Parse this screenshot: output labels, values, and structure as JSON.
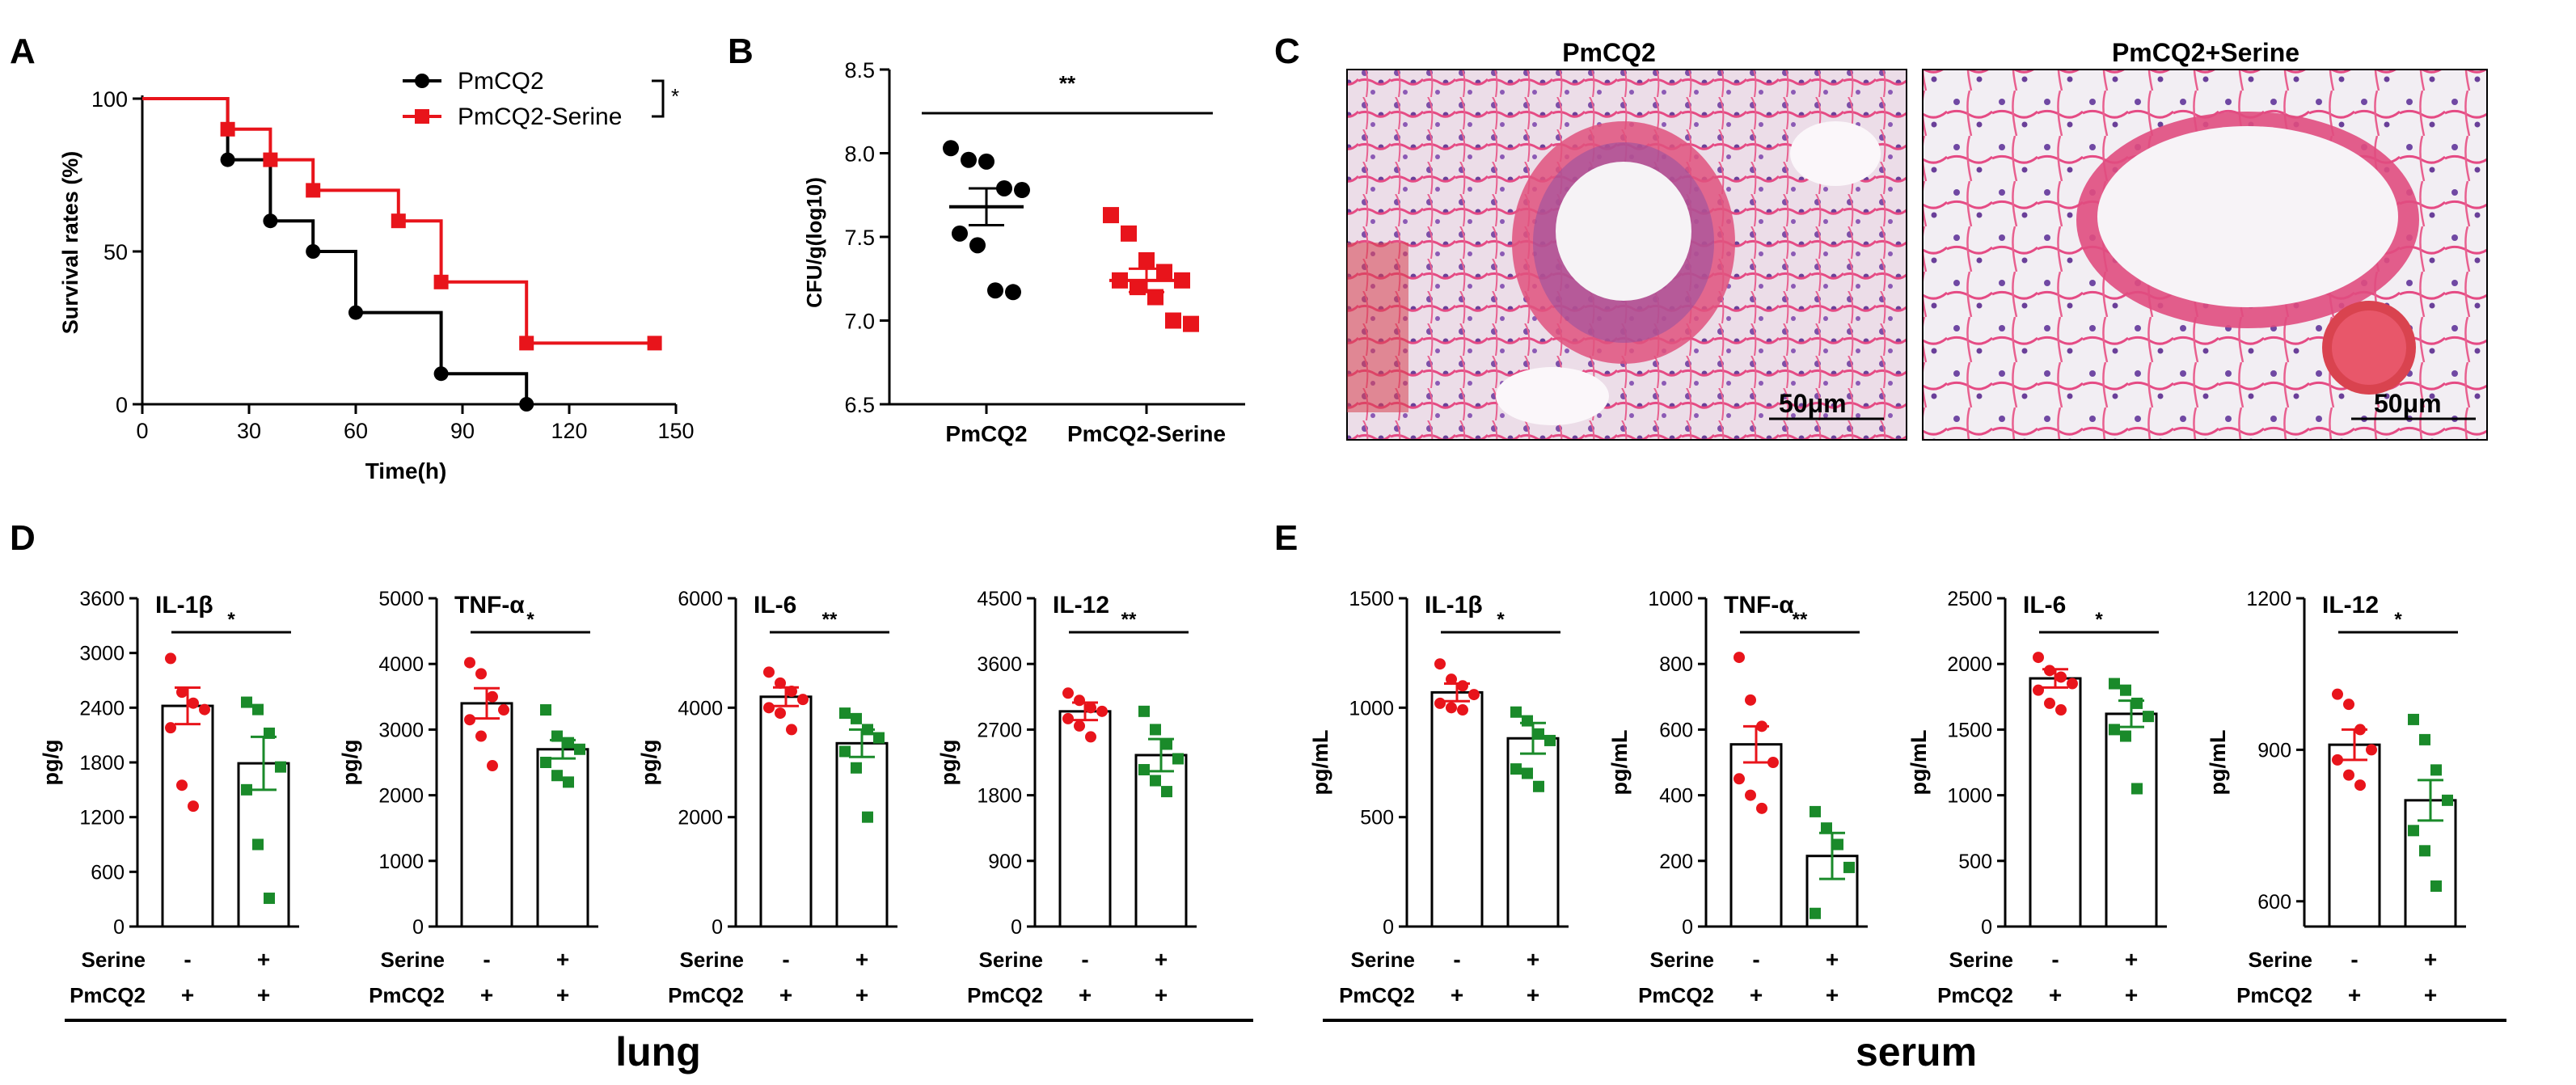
{
  "panel_labels": [
    "A",
    "B",
    "C",
    "D",
    "E"
  ],
  "colors": {
    "control": "#000000",
    "serine_red": "#e8141b",
    "serine_green": "#1a8a2a",
    "axis": "#000000"
  },
  "chart_data": [
    {
      "id": "A",
      "type": "line",
      "subtype": "kaplan-meier",
      "title": "",
      "xlabel": "Time(h)",
      "ylabel": "Survival rates (%)",
      "xlim": [
        0,
        150
      ],
      "ylim": [
        0,
        100
      ],
      "xticks": [
        0,
        30,
        60,
        90,
        120,
        150
      ],
      "yticks": [
        0,
        50,
        100
      ],
      "significance": "*",
      "series": [
        {
          "name": "PmCQ2",
          "color": "#000000",
          "points": [
            [
              0,
              100
            ],
            [
              24,
              100
            ],
            [
              24,
              80
            ],
            [
              36,
              80
            ],
            [
              36,
              60
            ],
            [
              48,
              60
            ],
            [
              48,
              50
            ],
            [
              60,
              50
            ],
            [
              60,
              30
            ],
            [
              84,
              30
            ],
            [
              84,
              10
            ],
            [
              108,
              10
            ],
            [
              108,
              0
            ]
          ],
          "markers": [
            [
              24,
              80
            ],
            [
              36,
              60
            ],
            [
              48,
              50
            ],
            [
              60,
              30
            ],
            [
              84,
              10
            ],
            [
              108,
              0
            ]
          ]
        },
        {
          "name": "PmCQ2-Serine",
          "color": "#e8141b",
          "points": [
            [
              0,
              100
            ],
            [
              24,
              100
            ],
            [
              24,
              90
            ],
            [
              36,
              90
            ],
            [
              36,
              80
            ],
            [
              48,
              80
            ],
            [
              48,
              70
            ],
            [
              72,
              70
            ],
            [
              72,
              60
            ],
            [
              84,
              60
            ],
            [
              84,
              40
            ],
            [
              108,
              40
            ],
            [
              108,
              20
            ],
            [
              144,
              20
            ]
          ],
          "markers": [
            [
              24,
              90
            ],
            [
              36,
              80
            ],
            [
              48,
              70
            ],
            [
              72,
              60
            ],
            [
              84,
              40
            ],
            [
              108,
              20
            ],
            [
              144,
              20
            ]
          ]
        }
      ]
    },
    {
      "id": "B",
      "type": "scatter",
      "subtype": "dot-plot",
      "ylabel": "CFU/g(log10)",
      "ylim": [
        6.5,
        8.5
      ],
      "yticks": [
        "6.5",
        "7.0",
        "7.5",
        "8.0",
        "8.5"
      ],
      "categories": [
        "PmCQ2",
        "PmCQ2-Serine"
      ],
      "significance": "**",
      "series": [
        {
          "name": "PmCQ2",
          "color": "#000000",
          "mean": 7.68,
          "sem": 0.11,
          "values": [
            8.03,
            7.96,
            7.95,
            7.79,
            7.78,
            7.52,
            7.45,
            7.18,
            7.17
          ]
        },
        {
          "name": "PmCQ2-Serine",
          "color": "#e8141b",
          "mean": 7.24,
          "sem": 0.07,
          "values": [
            7.63,
            7.52,
            7.36,
            7.29,
            7.24,
            7.24,
            7.2,
            7.14,
            7.0,
            6.98
          ]
        }
      ]
    },
    {
      "id": "C",
      "type": "image",
      "subtype": "histology",
      "panels": [
        {
          "title": "PmCQ2",
          "scale_bar": "50μm"
        },
        {
          "title": "PmCQ2+Serine",
          "scale_bar": "50μm"
        }
      ]
    },
    {
      "id": "D",
      "type": "bar",
      "group": "lung",
      "ylabel": "pg/g",
      "row_labels": [
        "Serine",
        "PmCQ2"
      ],
      "conditions": [
        [
          "-",
          "+"
        ],
        [
          "+",
          "+"
        ]
      ],
      "categories": [
        "-",
        "+"
      ],
      "plots": [
        {
          "title": "IL-1β",
          "ylim": [
            0,
            3600
          ],
          "yticks": [
            "0",
            "600",
            "1200",
            "1800",
            "2400",
            "3000",
            "3600"
          ],
          "significance": "*",
          "bars": [
            2420,
            1790
          ],
          "sem": [
            200,
            290
          ],
          "points": [
            [
              2940,
              2570,
              2450,
              2380,
              2180,
              1550,
              1320
            ],
            [
              2460,
              2380,
              2120,
              1750,
              1500,
              900,
              310
            ]
          ]
        },
        {
          "title": "TNF-α",
          "ylim": [
            0,
            5000
          ],
          "yticks": [
            "0",
            "1000",
            "2000",
            "3000",
            "4000",
            "5000"
          ],
          "significance": "*",
          "bars": [
            3400,
            2700
          ],
          "sem": [
            230,
            140
          ],
          "points": [
            [
              4020,
              3850,
              3500,
              3300,
              3150,
              2900,
              2450
            ],
            [
              3300,
              2900,
              2800,
              2700,
              2500,
              2300,
              2200
            ]
          ]
        },
        {
          "title": "IL-6",
          "ylim": [
            0,
            6000
          ],
          "yticks": [
            "0",
            "2000",
            "4000",
            "6000"
          ],
          "significance": "**",
          "bars": [
            4200,
            3350
          ],
          "sem": [
            170,
            250
          ],
          "points": [
            [
              4650,
              4450,
              4300,
              4150,
              4000,
              3900,
              3600
            ],
            [
              3900,
              3800,
              3600,
              3450,
              3200,
              2900,
              2000
            ]
          ]
        },
        {
          "title": "IL-12",
          "ylim": [
            0,
            4500
          ],
          "yticks": [
            "0",
            "900",
            "1800",
            "2700",
            "3600",
            "4500"
          ],
          "significance": "**",
          "bars": [
            2950,
            2350
          ],
          "sem": [
            120,
            220
          ],
          "points": [
            [
              3200,
              3100,
              3000,
              2950,
              2850,
              2750,
              2600
            ],
            [
              2950,
              2700,
              2500,
              2300,
              2150,
              2000,
              1850
            ]
          ]
        }
      ],
      "footer": "lung"
    },
    {
      "id": "E",
      "type": "bar",
      "group": "serum",
      "ylabel": "pg/mL",
      "row_labels": [
        "Serine",
        "PmCQ2"
      ],
      "conditions": [
        [
          "-",
          "+"
        ],
        [
          "+",
          "+"
        ]
      ],
      "categories": [
        "-",
        "+"
      ],
      "plots": [
        {
          "title": "IL-1β",
          "ylim": [
            0,
            1500
          ],
          "yticks": [
            "0",
            "500",
            "1000",
            "1500"
          ],
          "significance": "*",
          "bars": [
            1070,
            860
          ],
          "sem": [
            40,
            70
          ],
          "points": [
            [
              1200,
              1130,
              1100,
              1060,
              1020,
              1000,
              990
            ],
            [
              980,
              940,
              880,
              850,
              720,
              700,
              640
            ]
          ]
        },
        {
          "title": "TNF-α",
          "ylim": [
            0,
            1000
          ],
          "yticks": [
            "0",
            "200",
            "400",
            "600",
            "800",
            "1000"
          ],
          "significance": "**",
          "bars": [
            555,
            215
          ],
          "sem": [
            55,
            70
          ],
          "points": [
            [
              820,
              690,
              610,
              500,
              450,
              400,
              360
            ],
            [
              350,
              300,
              250,
              180,
              40
            ]
          ]
        },
        {
          "title": "IL-6",
          "ylim": [
            0,
            2500
          ],
          "yticks": [
            "0",
            "500",
            "1000",
            "1500",
            "2000",
            "2500"
          ],
          "significance": "*",
          "bars": [
            1890,
            1620
          ],
          "sem": [
            70,
            100
          ],
          "points": [
            [
              2050,
              1950,
              1900,
              1850,
              1800,
              1700,
              1650
            ],
            [
              1850,
              1800,
              1700,
              1600,
              1500,
              1450,
              1050
            ]
          ]
        },
        {
          "title": "IL-12",
          "ybase": 550,
          "ylim": [
            550,
            1200
          ],
          "yticks": [
            "600",
            "900",
            "1200"
          ],
          "significance": "*",
          "bars": [
            910,
            800
          ],
          "sem": [
            30,
            40
          ],
          "points": [
            [
              1010,
              990,
              940,
              900,
              880,
              850,
              830
            ],
            [
              960,
              920,
              860,
              800,
              740,
              700,
              630
            ]
          ]
        }
      ],
      "footer": "serum"
    }
  ]
}
